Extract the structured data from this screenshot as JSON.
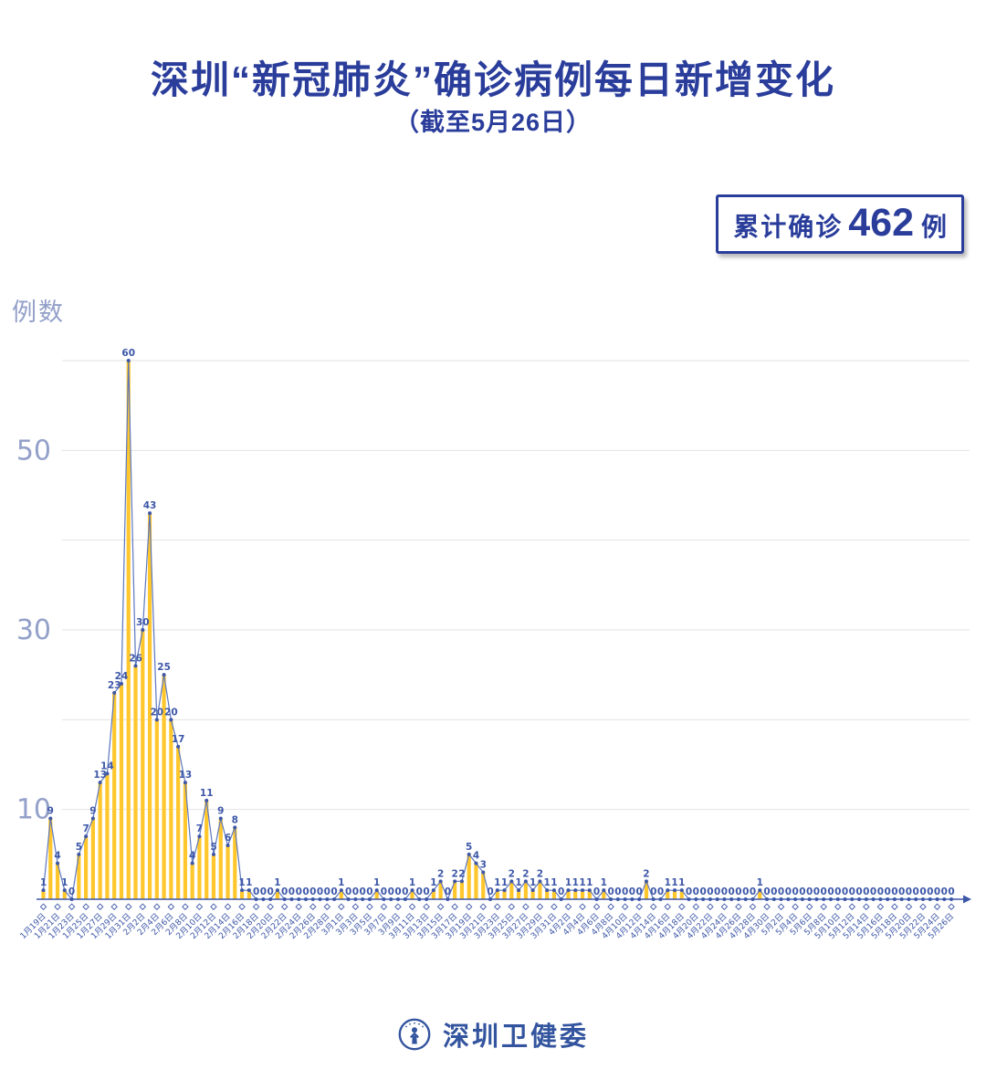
{
  "title": "深圳“新冠肺炎”确诊病例每日新增变化",
  "subtitle": "（截至5月26日）",
  "badge": {
    "prefix": "累计确诊",
    "value": "462",
    "suffix": "例"
  },
  "footer": {
    "org": "深圳卫健委"
  },
  "colors": {
    "title_blue": "#2A3D9B",
    "label_blue": "#3D57A8",
    "line_blue": "#5C77BE",
    "bar_yellow": "#FFC72C",
    "grid_gray": "#E2E2E2",
    "axis_text": "#93A0C9",
    "footer_blue": "#33549E"
  },
  "chart_data": {
    "type": "bar",
    "title": "深圳“新冠肺炎”确诊病例每日新增变化（截至5月26日）",
    "xlabel": "",
    "ylabel": "例数",
    "ylim": [
      0,
      62
    ],
    "gridlines": [
      10,
      20,
      30,
      40,
      50,
      60
    ],
    "yticks_labeled": [
      10,
      30,
      50
    ],
    "legend": "none",
    "grid": "on",
    "x_tick_every": 2,
    "cumulative_total": 462,
    "categories": [
      "1月19日",
      "1月20日",
      "1月21日",
      "1月22日",
      "1月23日",
      "1月24日",
      "1月25日",
      "1月26日",
      "1月27日",
      "1月28日",
      "1月29日",
      "1月30日",
      "1月31日",
      "2月1日",
      "2月2日",
      "2月3日",
      "2月4日",
      "2月5日",
      "2月6日",
      "2月7日",
      "2月8日",
      "2月9日",
      "2月10日",
      "2月11日",
      "2月12日",
      "2月13日",
      "2月14日",
      "2月15日",
      "2月16日",
      "2月17日",
      "2月18日",
      "2月19日",
      "2月20日",
      "2月21日",
      "2月22日",
      "2月23日",
      "2月24日",
      "2月25日",
      "2月26日",
      "2月27日",
      "2月28日",
      "2月29日",
      "3月1日",
      "3月2日",
      "3月3日",
      "3月4日",
      "3月5日",
      "3月6日",
      "3月7日",
      "3月8日",
      "3月9日",
      "3月10日",
      "3月11日",
      "3月12日",
      "3月13日",
      "3月14日",
      "3月15日",
      "3月16日",
      "3月17日",
      "3月18日",
      "3月19日",
      "3月20日",
      "3月21日",
      "3月22日",
      "3月23日",
      "3月24日",
      "3月25日",
      "3月26日",
      "3月27日",
      "3月28日",
      "3月29日",
      "3月30日",
      "3月31日",
      "4月1日",
      "4月2日",
      "4月3日",
      "4月4日",
      "4月5日",
      "4月6日",
      "4月7日",
      "4月8日",
      "4月9日",
      "4月10日",
      "4月11日",
      "4月12日",
      "4月13日",
      "4月14日",
      "4月15日",
      "4月16日",
      "4月17日",
      "4月18日",
      "4月19日",
      "4月20日",
      "4月21日",
      "4月22日",
      "4月23日",
      "4月24日",
      "4月25日",
      "4月26日",
      "4月27日",
      "4月28日",
      "4月29日",
      "4月30日",
      "5月1日",
      "5月2日",
      "5月3日",
      "5月4日",
      "5月5日",
      "5月6日",
      "5月7日",
      "5月8日",
      "5月9日",
      "5月10日",
      "5月11日",
      "5月12日",
      "5月13日",
      "5月14日",
      "5月15日",
      "5月16日",
      "5月17日",
      "5月18日",
      "5月19日",
      "5月20日",
      "5月21日",
      "5月22日",
      "5月23日",
      "5月24日",
      "5月25日",
      "5月26日"
    ],
    "values": [
      1,
      9,
      4,
      1,
      0,
      5,
      7,
      9,
      13,
      14,
      23,
      24,
      60,
      26,
      30,
      43,
      20,
      25,
      20,
      17,
      13,
      4,
      7,
      11,
      5,
      9,
      6,
      8,
      1,
      1,
      0,
      0,
      0,
      1,
      0,
      0,
      0,
      0,
      0,
      0,
      0,
      0,
      1,
      0,
      0,
      0,
      0,
      1,
      0,
      0,
      0,
      0,
      1,
      0,
      0,
      1,
      2,
      0,
      2,
      2,
      5,
      4,
      3,
      0,
      1,
      1,
      2,
      1,
      2,
      1,
      2,
      1,
      1,
      0,
      1,
      1,
      1,
      1,
      0,
      1,
      0,
      0,
      0,
      0,
      0,
      2,
      0,
      0,
      1,
      1,
      1,
      0,
      0,
      0,
      0,
      0,
      0,
      0,
      0,
      0,
      0,
      1,
      0,
      0,
      0,
      0,
      0,
      0,
      0,
      0,
      0,
      0,
      0,
      0,
      0,
      0,
      0,
      0,
      0,
      0,
      0,
      0,
      0,
      0,
      0,
      0,
      0,
      0,
      0
    ]
  }
}
